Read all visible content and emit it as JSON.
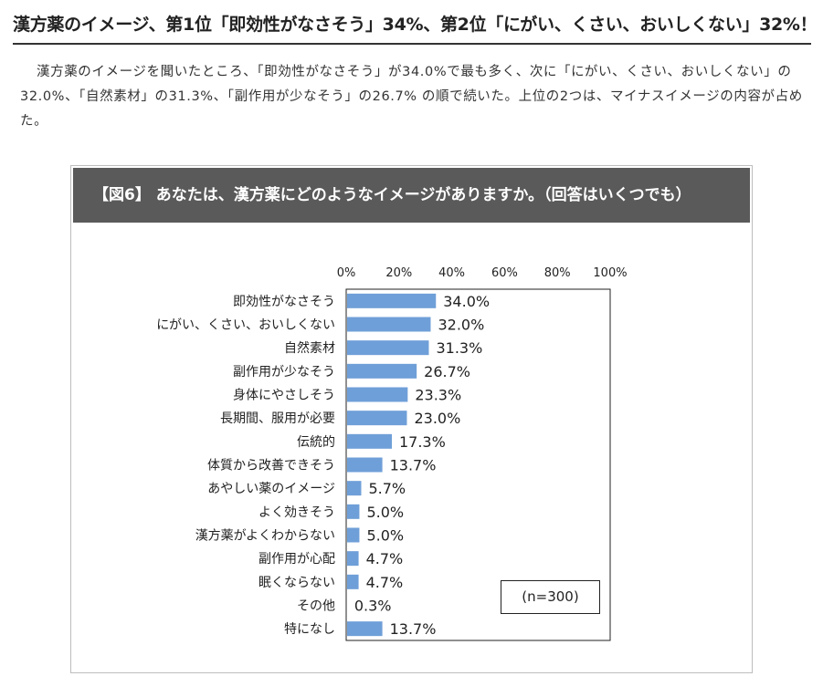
{
  "headline": "漢方薬のイメージ、第1位「即効性がなさそう」34%、第2位「にがい、くさい、おいしくない」32%！",
  "lead": "漢方薬のイメージを聞いたところ、「即効性がなさそう」が34.0%で最も多く、次に「にがい、くさい、おいしくない」の32.0%、「自然素材」の31.3%、「副作用が少なそう」の26.7% の順で続いた。上位の2つは、マイナスイメージの内容が占めた。",
  "figure": {
    "title": "【図6】 あなたは、漢方薬にどのようなイメージがありますか。（回答はいくつでも）",
    "n_label": "(n=300)"
  },
  "colors": {
    "bar": "#6f9fd8",
    "header_bg": "#5a5a5a"
  },
  "chart_data": {
    "type": "bar",
    "orientation": "horizontal",
    "title": "【図6】 あなたは、漢方薬にどのようなイメージがありますか。（回答はいくつでも）",
    "categories": [
      "即効性がなさそう",
      "にがい、くさい、おいしくない",
      "自然素材",
      "副作用が少なそう",
      "身体にやさしそう",
      "長期間、服用が必要",
      "伝統的",
      "体質から改善できそう",
      "あやしい薬のイメージ",
      "よく効きそう",
      "漢方薬がよくわからない",
      "副作用が心配",
      "眠くならない",
      "その他",
      "特になし"
    ],
    "values": [
      34.0,
      32.0,
      31.3,
      26.7,
      23.3,
      23.0,
      17.3,
      13.7,
      5.7,
      5.0,
      5.0,
      4.7,
      4.7,
      0.3,
      13.7
    ],
    "value_labels": [
      "34.0%",
      "32.0%",
      "31.3%",
      "26.7%",
      "23.3%",
      "23.0%",
      "17.3%",
      "13.7%",
      "5.7%",
      "5.0%",
      "5.0%",
      "4.7%",
      "4.7%",
      "0.3%",
      "13.7%"
    ],
    "xlim": [
      0,
      100
    ],
    "ticks": [
      0,
      20,
      40,
      60,
      80,
      100
    ],
    "tick_labels": [
      "0%",
      "20%",
      "40%",
      "60%",
      "80%",
      "100%"
    ],
    "grid": false,
    "xlabel": "",
    "ylabel": ""
  }
}
